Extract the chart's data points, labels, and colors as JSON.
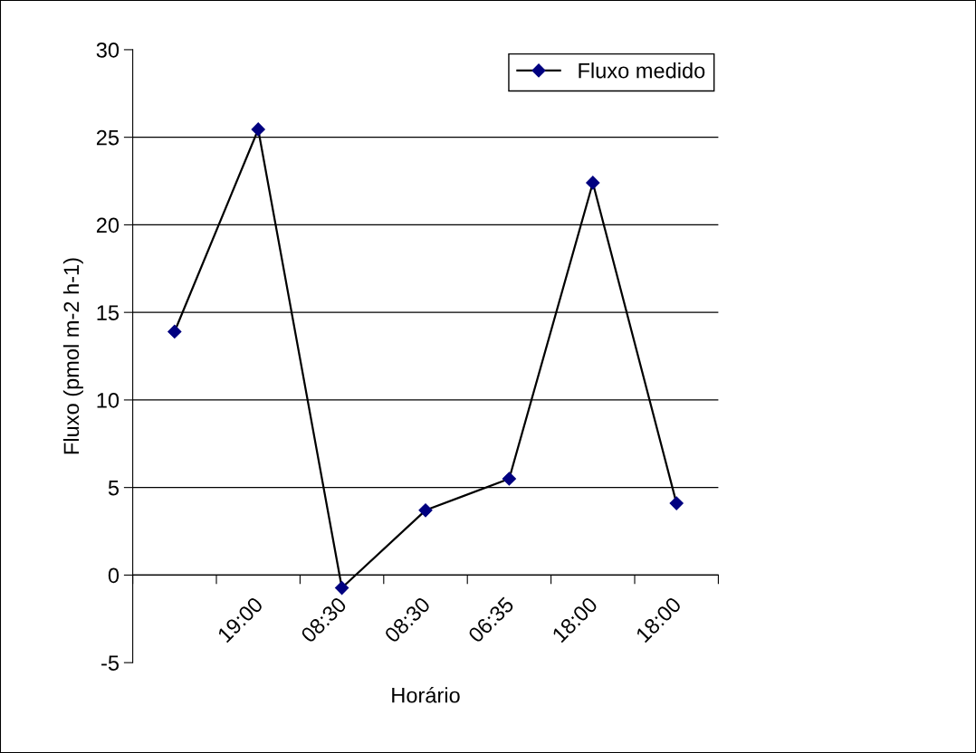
{
  "chart_data": {
    "type": "line",
    "xlabel": "Horário",
    "ylabel": "Fluxo (pmol m-2 h-1)",
    "categories": [
      null,
      "19:00",
      "08:30",
      "08:30",
      "06:35",
      "18:00",
      "18:00"
    ],
    "series": [
      {
        "name": "Fluxo medido",
        "color": "#000080",
        "values": [
          13.9,
          25.45,
          -0.73,
          3.7,
          5.5,
          22.4,
          4.1
        ]
      }
    ],
    "ylim": [
      -5,
      30
    ],
    "yticks": [
      -5,
      0,
      5,
      10,
      15,
      20,
      25,
      30
    ],
    "grid": "y",
    "legend": "top right",
    "marker": "diamond",
    "line_style": "solid"
  }
}
